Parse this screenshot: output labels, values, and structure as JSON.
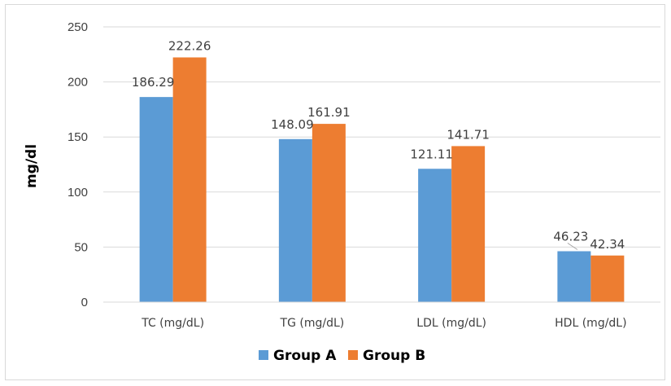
{
  "chart_data": {
    "type": "bar",
    "categories": [
      "TC (mg/dL)",
      "TG (mg/dL)",
      "LDL (mg/dL)",
      "HDL (mg/dL)"
    ],
    "series": [
      {
        "name": "Group A",
        "values": [
          186.29,
          148.09,
          121.11,
          46.23
        ],
        "color": "#5b9bd5"
      },
      {
        "name": "Group B",
        "values": [
          222.26,
          161.91,
          141.71,
          42.34
        ],
        "color": "#ed7d31"
      }
    ],
    "data_labels": [
      [
        "186.29",
        "148.09",
        "121.11",
        "46.23"
      ],
      [
        "222.26",
        "161.91",
        "141.71",
        "42.34"
      ]
    ],
    "title": "",
    "xlabel": "",
    "ylabel": "mg/dl",
    "ylim": [
      0,
      250
    ],
    "yticks": [
      0,
      50,
      100,
      150,
      200,
      250
    ],
    "grid": true,
    "legend_position": "bottom"
  }
}
